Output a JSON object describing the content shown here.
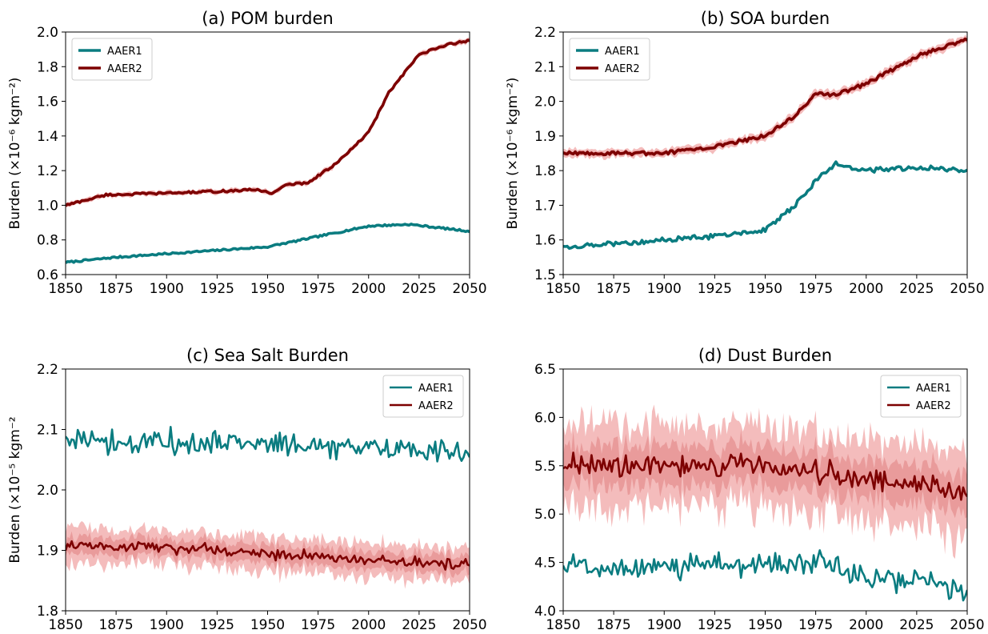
{
  "colors": {
    "aaer1": "#0a7c80",
    "aaer2": "#7d0000",
    "band_outer": "#f0a6a6",
    "band_inner": "#e07f7f"
  },
  "chart_data": [
    {
      "type": "line",
      "title": "(a) POM burden",
      "xlabel": "",
      "ylabel": "Burden (×10⁻⁶ kgm⁻²)",
      "xlim": [
        1850,
        2050
      ],
      "ylim": [
        0.6,
        2.0
      ],
      "xticks": [
        "1850",
        "1875",
        "1900",
        "1925",
        "1950",
        "1975",
        "2000",
        "2025",
        "2050"
      ],
      "yticks": [
        "0.6",
        "0.8",
        "1.0",
        "1.2",
        "1.4",
        "1.6",
        "1.8",
        "2.0"
      ],
      "legend_position": "upper-left",
      "noise": {
        "AAER1": 0.005,
        "AAER2": 0.006
      },
      "band_widths": {
        "outer": 0.014,
        "inner": 0.007
      },
      "series": [
        {
          "name": "AAER1",
          "x": [
            1850,
            1875,
            1900,
            1925,
            1950,
            1975,
            2000,
            2020,
            2050
          ],
          "y": [
            0.67,
            0.7,
            0.72,
            0.74,
            0.76,
            0.82,
            0.88,
            0.89,
            0.85
          ]
        },
        {
          "name": "AAER2",
          "x": [
            1850,
            1870,
            1900,
            1925,
            1945,
            1952,
            1960,
            1970,
            1985,
            2000,
            2010,
            2025,
            2040,
            2050
          ],
          "y": [
            1.0,
            1.06,
            1.07,
            1.08,
            1.09,
            1.07,
            1.12,
            1.13,
            1.25,
            1.42,
            1.65,
            1.87,
            1.93,
            1.95
          ]
        }
      ]
    },
    {
      "type": "line",
      "title": "(b) SOA burden",
      "xlabel": "",
      "ylabel": "Burden (×10⁻⁶ kgm⁻²)",
      "xlim": [
        1850,
        2050
      ],
      "ylim": [
        1.5,
        2.2
      ],
      "xticks": [
        "1850",
        "1875",
        "1900",
        "1925",
        "1950",
        "1975",
        "2000",
        "2025",
        "2050"
      ],
      "yticks": [
        "1.5",
        "1.6",
        "1.7",
        "1.8",
        "1.9",
        "2.0",
        "2.1",
        "2.2"
      ],
      "legend_position": "upper-left",
      "noise": {
        "AAER1": 0.007,
        "AAER2": 0.005
      },
      "band_widths": {
        "outer": 0.012,
        "inner": 0.006
      },
      "series": [
        {
          "name": "AAER1",
          "x": [
            1850,
            1875,
            1900,
            1925,
            1950,
            1965,
            1975,
            1985,
            2000,
            2025,
            2050
          ],
          "y": [
            1.58,
            1.59,
            1.6,
            1.61,
            1.63,
            1.7,
            1.77,
            1.82,
            1.8,
            1.81,
            1.8
          ]
        },
        {
          "name": "AAER2",
          "x": [
            1850,
            1900,
            1925,
            1950,
            1965,
            1975,
            1985,
            2000,
            2025,
            2050
          ],
          "y": [
            1.85,
            1.85,
            1.87,
            1.9,
            1.96,
            2.02,
            2.02,
            2.05,
            2.13,
            2.18
          ]
        }
      ]
    },
    {
      "type": "line",
      "title": "(c) Sea Salt Burden",
      "xlabel": "",
      "ylabel": "Burden (×10⁻⁵ kgm⁻²",
      "xlim": [
        1850,
        2050
      ],
      "ylim": [
        1.8,
        2.2
      ],
      "xticks": [
        "1850",
        "1875",
        "1900",
        "1925",
        "1950",
        "1975",
        "2000",
        "2025",
        "2050"
      ],
      "yticks": [
        "1.8",
        "1.9",
        "2.0",
        "2.1",
        "2.2"
      ],
      "legend_position": "upper-right",
      "noise": {
        "AAER1": 0.018,
        "AAER2": 0.008
      },
      "band_widths": {
        "outer": 0.028,
        "inner": 0.014
      },
      "series": [
        {
          "name": "AAER1",
          "x": [
            1850,
            1900,
            1950,
            2000,
            2050
          ],
          "y": [
            2.085,
            2.08,
            2.075,
            2.07,
            2.06
          ]
        },
        {
          "name": "AAER2",
          "x": [
            1850,
            1900,
            1950,
            2000,
            2050
          ],
          "y": [
            1.91,
            1.905,
            1.895,
            1.885,
            1.875
          ]
        }
      ]
    },
    {
      "type": "line",
      "title": "(d) Dust Burden",
      "xlabel": "",
      "ylabel": "",
      "xlim": [
        1850,
        2050
      ],
      "ylim": [
        4.0,
        6.5
      ],
      "xticks": [
        "1850",
        "1875",
        "1900",
        "1925",
        "1950",
        "1975",
        "2000",
        "2025",
        "2050"
      ],
      "yticks": [
        "4.0",
        "4.5",
        "5.0",
        "5.5",
        "6.0",
        "6.5"
      ],
      "legend_position": "upper-right",
      "noise": {
        "AAER1": 0.12,
        "AAER2": 0.11
      },
      "band_widths": {
        "outer": 0.42,
        "inner": 0.2
      },
      "series": [
        {
          "name": "AAER1",
          "x": [
            1850,
            1900,
            1950,
            1975,
            2000,
            2025,
            2050
          ],
          "y": [
            4.45,
            4.45,
            4.5,
            4.5,
            4.35,
            4.3,
            4.2
          ]
        },
        {
          "name": "AAER2",
          "x": [
            1850,
            1900,
            1950,
            1975,
            2000,
            2025,
            2050
          ],
          "y": [
            5.5,
            5.5,
            5.5,
            5.45,
            5.35,
            5.3,
            5.25
          ]
        }
      ]
    }
  ]
}
